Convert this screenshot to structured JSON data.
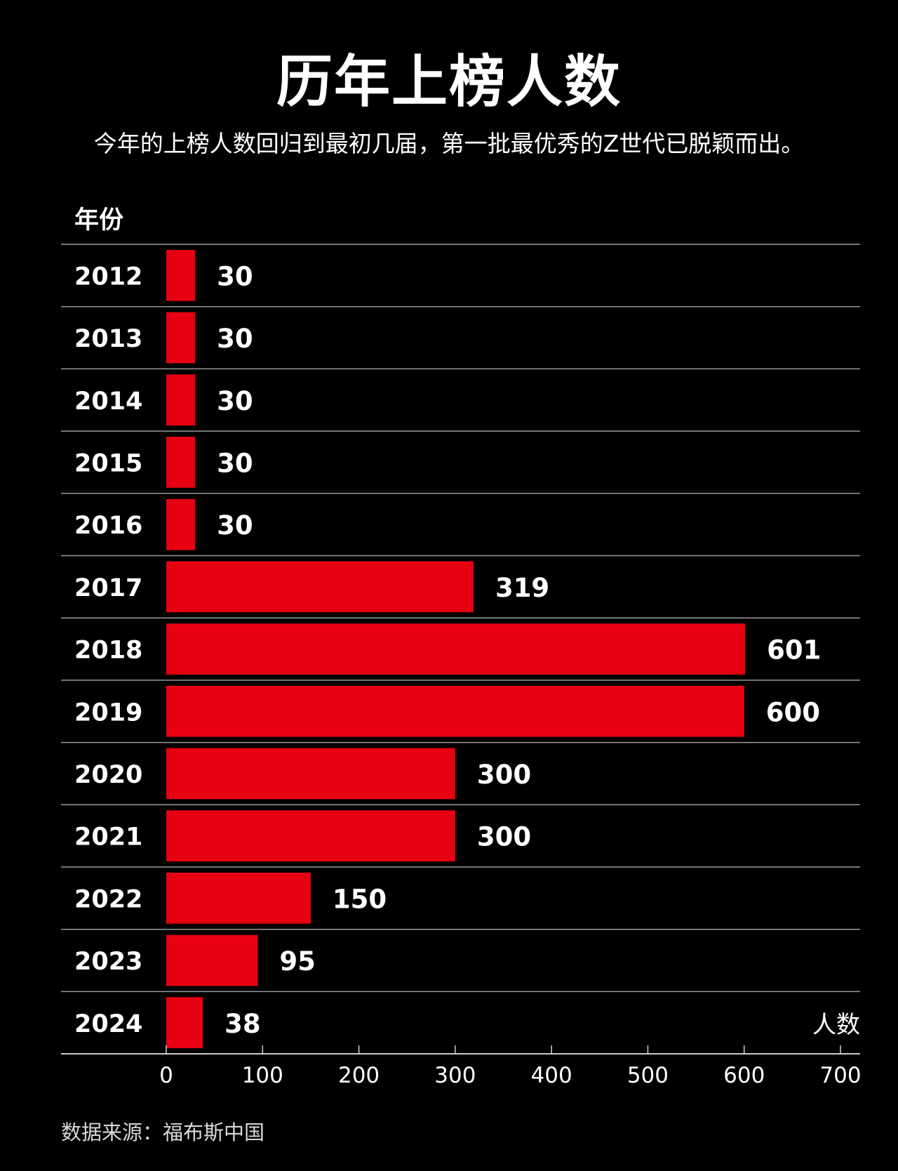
{
  "title": "历年上榜人数",
  "subtitle": "今年的上榜人数回归到最初几届，第一批最优秀的Z世代已脱颖而出。",
  "column_header": "年份",
  "x_unit_label": "人数",
  "source": "数据来源：福布斯中国",
  "colors": {
    "bar": "#e60012",
    "background": "#000000",
    "text": "#ffffff",
    "rule": "#9a9a9a"
  },
  "chart_data": {
    "type": "bar",
    "orientation": "horizontal",
    "categories": [
      "2012",
      "2013",
      "2014",
      "2015",
      "2016",
      "2017",
      "2018",
      "2019",
      "2020",
      "2021",
      "2022",
      "2023",
      "2024"
    ],
    "values": [
      30,
      30,
      30,
      30,
      30,
      319,
      601,
      600,
      300,
      300,
      150,
      95,
      38
    ],
    "xlim": [
      0,
      700
    ],
    "xticks": [
      0,
      100,
      200,
      300,
      400,
      500,
      600,
      700
    ],
    "xlabel": "人数",
    "ylabel": "年份",
    "grid": false
  }
}
